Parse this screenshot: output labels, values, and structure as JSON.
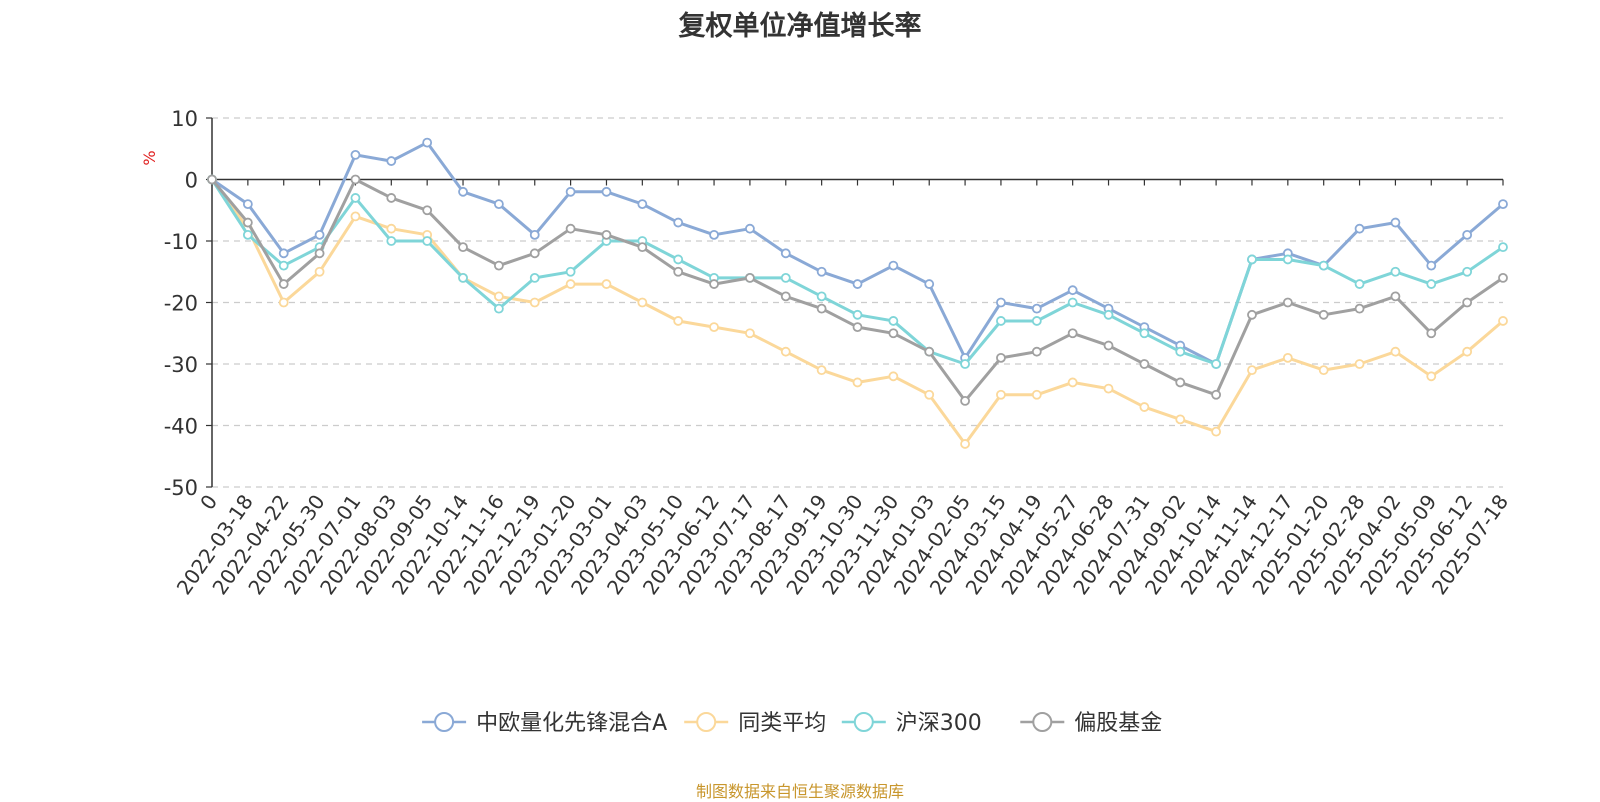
{
  "chart_data": {
    "type": "line",
    "title": "复权单位净值增长率",
    "ylabel": "%",
    "ylim": [
      -50,
      10
    ],
    "yticks": [
      10,
      0,
      -10,
      -20,
      -30,
      -40,
      -50
    ],
    "grid": true,
    "legend_position": "bottom",
    "x_tick_labels": [
      "0",
      "2022-03-18",
      "2022-04-22",
      "2022-05-30",
      "2022-07-01",
      "2022-08-03",
      "2022-09-05",
      "2022-10-14",
      "2022-11-16",
      "2022-12-19",
      "2023-01-20",
      "2023-03-01",
      "2023-04-03",
      "2023-05-10",
      "2023-06-12",
      "2023-07-17",
      "2023-08-17",
      "2023-09-19",
      "2023-10-30",
      "2023-11-30",
      "2024-01-03",
      "2024-02-05",
      "2024-03-15",
      "2024-04-19",
      "2024-05-27",
      "2024-06-28",
      "2024-07-31",
      "2024-09-02",
      "2024-10-14",
      "2024-11-14",
      "2024-12-17",
      "2025-01-20",
      "2025-02-28",
      "2025-04-02",
      "2025-05-09",
      "2025-06-12",
      "2025-07-18"
    ],
    "series": [
      {
        "name": "中欧量化先锋混合A",
        "color": "#8aa9d6",
        "values": [
          0,
          -4,
          -12,
          -9,
          4,
          3,
          6,
          -2,
          -4,
          -9,
          -2,
          -2,
          -4,
          -7,
          -9,
          -8,
          -12,
          -15,
          -17,
          -14,
          -17,
          -29,
          -20,
          -21,
          -18,
          -21,
          -24,
          -27,
          -30,
          -13,
          -12,
          -14,
          -8,
          -7,
          -14,
          -9,
          -4
        ]
      },
      {
        "name": "同类平均",
        "color": "#fbd89a",
        "values": [
          0,
          -8,
          -20,
          -15,
          -6,
          -8,
          -9,
          -16,
          -19,
          -20,
          -17,
          -17,
          -20,
          -23,
          -24,
          -25,
          -28,
          -31,
          -33,
          -32,
          -35,
          -43,
          -35,
          -35,
          -33,
          -34,
          -37,
          -39,
          -41,
          -31,
          -29,
          -31,
          -30,
          -28,
          -32,
          -28,
          -23
        ]
      },
      {
        "name": "沪深300",
        "color": "#7fd5d8",
        "values": [
          0,
          -9,
          -14,
          -11,
          -3,
          -10,
          -10,
          -16,
          -21,
          -16,
          -15,
          -10,
          -10,
          -13,
          -16,
          -16,
          -16,
          -19,
          -22,
          -23,
          -28,
          -30,
          -23,
          -23,
          -20,
          -22,
          -25,
          -28,
          -30,
          -13,
          -13,
          -14,
          -17,
          -15,
          -17,
          -15,
          -11
        ]
      },
      {
        "name": "偏股基金",
        "color": "#a0a0a0",
        "values": [
          0,
          -7,
          -17,
          -12,
          0,
          -3,
          -5,
          -11,
          -14,
          -12,
          -8,
          -9,
          -11,
          -15,
          -17,
          -16,
          -19,
          -21,
          -24,
          -25,
          -28,
          -36,
          -29,
          -28,
          -25,
          -27,
          -30,
          -33,
          -35,
          -22,
          -20,
          -22,
          -21,
          -19,
          -25,
          -20,
          -16
        ]
      }
    ],
    "source_note": "制图数据来自恒生聚源数据库"
  }
}
